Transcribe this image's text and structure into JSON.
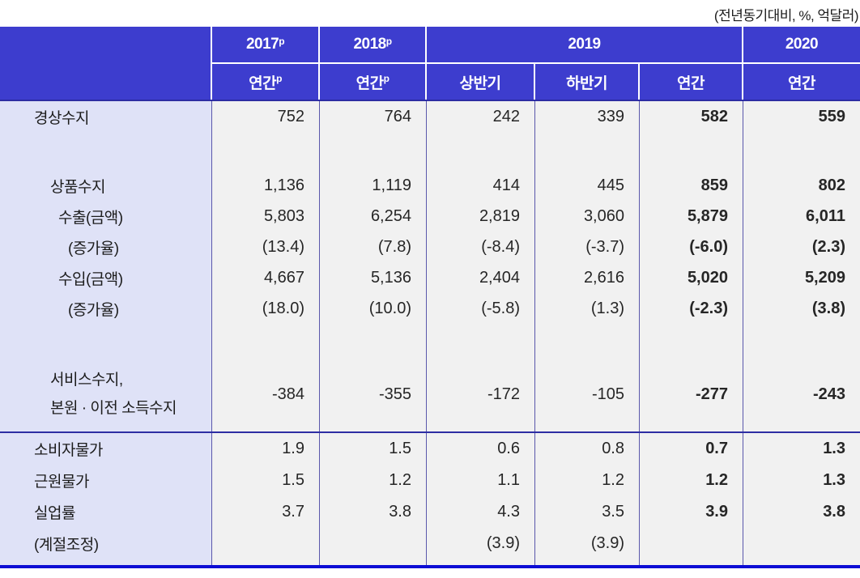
{
  "note": "(전년동기대비, %, 억달러)",
  "colors": {
    "header_blue": "#3d3dce",
    "label_bg": "#dfe2f7",
    "cell_bg": "#f1f1f1",
    "v_border": "#5a57ab",
    "dark_line": "#2d2da3",
    "bottom_line": "#0d0dd4"
  },
  "header": {
    "cols": [
      {
        "text": "2017",
        "sup": "p"
      },
      {
        "text": "2018",
        "sup": "p"
      },
      {
        "text": "2019"
      },
      {
        "text": "2020"
      }
    ],
    "sub": [
      {
        "text": "연간",
        "sup": "p"
      },
      {
        "text": "연간",
        "sup": "p"
      },
      {
        "text": "상반기"
      },
      {
        "text": "하반기"
      },
      {
        "text": "연간"
      },
      {
        "text": "연간"
      }
    ]
  },
  "rows": [
    {
      "label": "경상수지",
      "values": [
        "752",
        "764",
        "242",
        "339",
        "582",
        "559"
      ]
    },
    {
      "label": "상품수지",
      "values": [
        "1,136",
        "1,119",
        "414",
        "445",
        "859",
        "802"
      ]
    },
    {
      "label": "수출(금액)",
      "values": [
        "5,803",
        "6,254",
        "2,819",
        "3,060",
        "5,879",
        "6,011"
      ]
    },
    {
      "label": "(증가율)",
      "values": [
        "(13.4)",
        "(7.8)",
        "(-8.4)",
        "(-3.7)",
        "(-6.0)",
        "(2.3)"
      ]
    },
    {
      "label": "수입(금액)",
      "values": [
        "4,667",
        "5,136",
        "2,404",
        "2,616",
        "5,020",
        "5,209"
      ]
    },
    {
      "label": "(증가율)",
      "values": [
        "(18.0)",
        "(10.0)",
        "(-5.8)",
        "(1.3)",
        "(-2.3)",
        "(3.8)"
      ]
    },
    {
      "label": "서비스수지,",
      "label2": "본원 · 이전 소득수지",
      "values": [
        "-384",
        "-355",
        "-172",
        "-105",
        "-277",
        "-243"
      ]
    }
  ],
  "rows2": [
    {
      "label": "소비자물가",
      "values": [
        "1.9",
        "1.5",
        "0.6",
        "0.8",
        "0.7",
        "1.3"
      ]
    },
    {
      "label": "근원물가",
      "values": [
        "1.5",
        "1.2",
        "1.1",
        "1.2",
        "1.2",
        "1.3"
      ]
    },
    {
      "label": "실업률",
      "values": [
        "3.7",
        "3.8",
        "4.3",
        "3.5",
        "3.9",
        "3.8"
      ]
    },
    {
      "label": "(계절조정)",
      "values": [
        "",
        "",
        "(3.9)",
        "(3.9)",
        "",
        ""
      ]
    }
  ]
}
